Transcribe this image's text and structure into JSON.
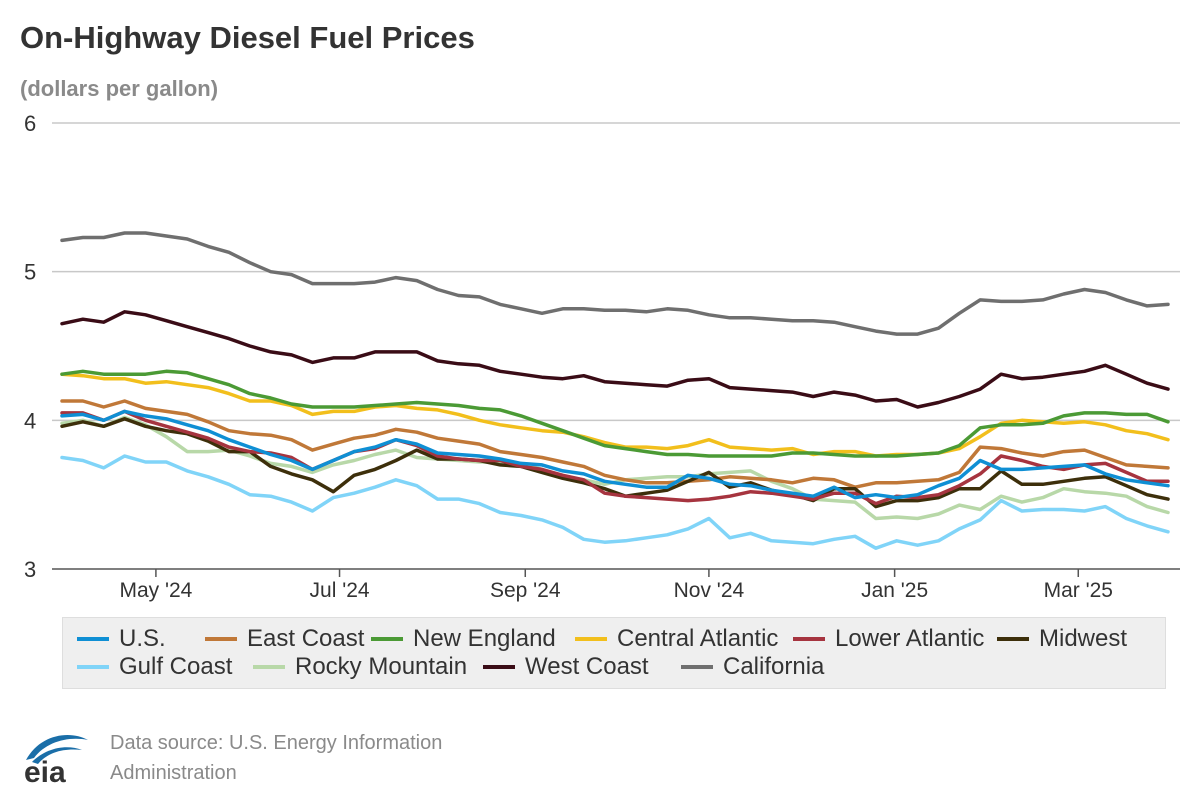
{
  "header": {
    "title": "On-Highway Diesel Fuel Prices",
    "subtitle": "(dollars per gallon)"
  },
  "footer": {
    "source_line1": "Data source: U.S. Energy Information",
    "source_line2": "Administration",
    "logo_text": "eia",
    "logo_color": "#1a6ea8",
    "logo_text_color": "#333333"
  },
  "chart_data": {
    "type": "line",
    "title": "On-Highway Diesel Fuel Prices",
    "ylabel": "dollars per gallon",
    "ylim": [
      3,
      6
    ],
    "yticks": [
      3,
      4,
      5,
      6
    ],
    "grid": true,
    "legend_position": "bottom",
    "x_tick_labels": [
      "May '24",
      "Jul '24",
      "Sep '24",
      "Nov '24",
      "Jan '25",
      "Mar '25"
    ],
    "x_tick_index": [
      4.5,
      13.3,
      22.2,
      31.0,
      39.9,
      48.7
    ],
    "x": [
      "2024-03-11",
      "2024-03-18",
      "2024-03-25",
      "2024-04-01",
      "2024-04-08",
      "2024-04-15",
      "2024-04-22",
      "2024-04-29",
      "2024-05-06",
      "2024-05-13",
      "2024-05-20",
      "2024-05-27",
      "2024-06-03",
      "2024-06-10",
      "2024-06-17",
      "2024-06-24",
      "2024-07-01",
      "2024-07-08",
      "2024-07-15",
      "2024-07-22",
      "2024-07-29",
      "2024-08-05",
      "2024-08-12",
      "2024-08-19",
      "2024-08-26",
      "2024-09-02",
      "2024-09-09",
      "2024-09-16",
      "2024-09-23",
      "2024-09-30",
      "2024-10-07",
      "2024-10-14",
      "2024-10-21",
      "2024-10-28",
      "2024-11-04",
      "2024-11-11",
      "2024-11-18",
      "2024-11-25",
      "2024-12-02",
      "2024-12-09",
      "2024-12-16",
      "2024-12-23",
      "2024-12-30",
      "2025-01-06",
      "2025-01-13",
      "2025-01-20",
      "2025-01-27",
      "2025-02-03",
      "2025-02-10",
      "2025-02-17",
      "2025-02-24",
      "2025-03-03",
      "2025-03-10",
      "2025-03-17"
    ],
    "series": [
      {
        "name": "U.S.",
        "color": "#0f8fd4",
        "values": [
          4.03,
          4.04,
          4.0,
          4.06,
          4.03,
          4.01,
          3.97,
          3.93,
          3.87,
          3.82,
          3.77,
          3.73,
          3.67,
          3.73,
          3.79,
          3.82,
          3.87,
          3.84,
          3.78,
          3.77,
          3.76,
          3.74,
          3.71,
          3.7,
          3.66,
          3.64,
          3.59,
          3.57,
          3.55,
          3.55,
          3.63,
          3.61,
          3.57,
          3.56,
          3.53,
          3.51,
          3.49,
          3.55,
          3.48,
          3.5,
          3.48,
          3.5,
          3.56,
          3.61,
          3.73,
          3.67,
          3.67,
          3.68,
          3.69,
          3.7,
          3.64,
          3.6,
          3.58,
          3.56
        ]
      },
      {
        "name": "East Coast",
        "color": "#c07838",
        "values": [
          4.13,
          4.13,
          4.09,
          4.13,
          4.08,
          4.06,
          4.04,
          3.99,
          3.93,
          3.91,
          3.9,
          3.87,
          3.8,
          3.84,
          3.88,
          3.9,
          3.94,
          3.92,
          3.88,
          3.86,
          3.84,
          3.79,
          3.77,
          3.75,
          3.72,
          3.69,
          3.63,
          3.6,
          3.58,
          3.58,
          3.59,
          3.6,
          3.62,
          3.61,
          3.6,
          3.58,
          3.61,
          3.6,
          3.55,
          3.58,
          3.58,
          3.59,
          3.6,
          3.65,
          3.82,
          3.81,
          3.78,
          3.76,
          3.79,
          3.8,
          3.75,
          3.7,
          3.69,
          3.68
        ]
      },
      {
        "name": "New England",
        "color": "#4b9a35",
        "values": [
          4.31,
          4.33,
          4.31,
          4.31,
          4.31,
          4.33,
          4.32,
          4.28,
          4.24,
          4.18,
          4.15,
          4.11,
          4.09,
          4.09,
          4.09,
          4.1,
          4.11,
          4.12,
          4.11,
          4.1,
          4.08,
          4.07,
          4.03,
          3.98,
          3.93,
          3.88,
          3.83,
          3.81,
          3.79,
          3.77,
          3.77,
          3.76,
          3.76,
          3.76,
          3.76,
          3.78,
          3.78,
          3.77,
          3.76,
          3.76,
          3.76,
          3.77,
          3.78,
          3.83,
          3.95,
          3.97,
          3.97,
          3.98,
          4.03,
          4.05,
          4.05,
          4.04,
          4.04,
          3.99
        ]
      },
      {
        "name": "Central Atlantic",
        "color": "#f2bf1c",
        "values": [
          4.31,
          4.3,
          4.28,
          4.28,
          4.25,
          4.26,
          4.24,
          4.22,
          4.18,
          4.13,
          4.13,
          4.1,
          4.04,
          4.06,
          4.06,
          4.09,
          4.1,
          4.08,
          4.07,
          4.04,
          4.0,
          3.97,
          3.95,
          3.93,
          3.92,
          3.89,
          3.85,
          3.82,
          3.82,
          3.81,
          3.83,
          3.87,
          3.82,
          3.81,
          3.8,
          3.81,
          3.77,
          3.79,
          3.79,
          3.76,
          3.77,
          3.77,
          3.78,
          3.81,
          3.89,
          3.98,
          4.0,
          3.99,
          3.98,
          3.99,
          3.97,
          3.93,
          3.91,
          3.87
        ]
      },
      {
        "name": "Lower Atlantic",
        "color": "#a6343f",
        "values": [
          4.05,
          4.05,
          4.0,
          4.06,
          4.0,
          3.96,
          3.92,
          3.88,
          3.82,
          3.79,
          3.78,
          3.75,
          3.67,
          3.73,
          3.79,
          3.81,
          3.87,
          3.83,
          3.76,
          3.74,
          3.73,
          3.73,
          3.69,
          3.67,
          3.63,
          3.6,
          3.51,
          3.49,
          3.48,
          3.47,
          3.46,
          3.47,
          3.49,
          3.52,
          3.51,
          3.49,
          3.47,
          3.51,
          3.51,
          3.44,
          3.49,
          3.48,
          3.5,
          3.56,
          3.64,
          3.76,
          3.73,
          3.69,
          3.67,
          3.7,
          3.71,
          3.65,
          3.59,
          3.59
        ]
      },
      {
        "name": "Midwest",
        "color": "#3d2f0b",
        "values": [
          3.96,
          3.99,
          3.96,
          4.01,
          3.96,
          3.93,
          3.91,
          3.86,
          3.79,
          3.79,
          3.69,
          3.64,
          3.6,
          3.52,
          3.63,
          3.67,
          3.73,
          3.8,
          3.74,
          3.74,
          3.73,
          3.7,
          3.69,
          3.65,
          3.61,
          3.58,
          3.54,
          3.49,
          3.51,
          3.53,
          3.59,
          3.65,
          3.55,
          3.58,
          3.53,
          3.5,
          3.46,
          3.54,
          3.54,
          3.42,
          3.46,
          3.46,
          3.48,
          3.54,
          3.54,
          3.66,
          3.57,
          3.57,
          3.59,
          3.61,
          3.62,
          3.56,
          3.5,
          3.47
        ]
      },
      {
        "name": "Gulf Coast",
        "color": "#80d4f8",
        "values": [
          3.75,
          3.73,
          3.68,
          3.76,
          3.72,
          3.72,
          3.66,
          3.62,
          3.57,
          3.5,
          3.49,
          3.45,
          3.39,
          3.48,
          3.51,
          3.55,
          3.6,
          3.56,
          3.47,
          3.47,
          3.44,
          3.38,
          3.36,
          3.33,
          3.28,
          3.2,
          3.18,
          3.19,
          3.21,
          3.23,
          3.27,
          3.34,
          3.21,
          3.24,
          3.19,
          3.18,
          3.17,
          3.2,
          3.22,
          3.14,
          3.19,
          3.16,
          3.19,
          3.27,
          3.33,
          3.46,
          3.39,
          3.4,
          3.4,
          3.39,
          3.42,
          3.34,
          3.29,
          3.25
        ]
      },
      {
        "name": "Rocky Mountain",
        "color": "#b8d8a8",
        "values": [
          3.98,
          4.0,
          3.96,
          4.02,
          3.97,
          3.89,
          3.79,
          3.79,
          3.8,
          3.76,
          3.71,
          3.69,
          3.65,
          3.7,
          3.73,
          3.77,
          3.8,
          3.75,
          3.74,
          3.73,
          3.72,
          3.72,
          3.71,
          3.67,
          3.62,
          3.6,
          3.57,
          3.6,
          3.61,
          3.62,
          3.62,
          3.64,
          3.65,
          3.66,
          3.59,
          3.54,
          3.47,
          3.46,
          3.45,
          3.34,
          3.35,
          3.34,
          3.37,
          3.43,
          3.4,
          3.49,
          3.45,
          3.48,
          3.54,
          3.52,
          3.51,
          3.49,
          3.42,
          3.38
        ]
      },
      {
        "name": "West Coast",
        "color": "#3a0c16",
        "values": [
          4.65,
          4.68,
          4.66,
          4.73,
          4.71,
          4.67,
          4.63,
          4.59,
          4.55,
          4.5,
          4.46,
          4.44,
          4.39,
          4.42,
          4.42,
          4.46,
          4.46,
          4.46,
          4.4,
          4.38,
          4.37,
          4.33,
          4.31,
          4.29,
          4.28,
          4.3,
          4.26,
          4.25,
          4.24,
          4.23,
          4.27,
          4.28,
          4.22,
          4.21,
          4.2,
          4.19,
          4.16,
          4.19,
          4.17,
          4.13,
          4.14,
          4.09,
          4.12,
          4.16,
          4.21,
          4.31,
          4.28,
          4.29,
          4.31,
          4.33,
          4.37,
          4.31,
          4.25,
          4.21
        ]
      },
      {
        "name": "California",
        "color": "#6f6f6f",
        "values": [
          5.21,
          5.23,
          5.23,
          5.26,
          5.26,
          5.24,
          5.22,
          5.17,
          5.13,
          5.06,
          5.0,
          4.98,
          4.92,
          4.92,
          4.92,
          4.93,
          4.96,
          4.94,
          4.88,
          4.84,
          4.83,
          4.78,
          4.75,
          4.72,
          4.75,
          4.75,
          4.74,
          4.74,
          4.73,
          4.75,
          4.74,
          4.71,
          4.69,
          4.69,
          4.68,
          4.67,
          4.67,
          4.66,
          4.63,
          4.6,
          4.58,
          4.58,
          4.62,
          4.72,
          4.81,
          4.8,
          4.8,
          4.81,
          4.85,
          4.88,
          4.86,
          4.81,
          4.77,
          4.78
        ]
      }
    ]
  }
}
